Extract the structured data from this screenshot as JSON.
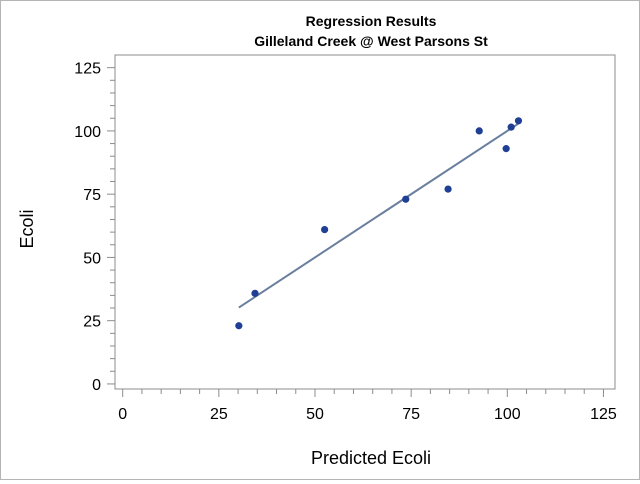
{
  "chart_data": {
    "type": "scatter",
    "title": "Regression Results",
    "subtitle": "Gilleland Creek @ West Parsons St",
    "xlabel": "Predicted Ecoli",
    "ylabel": "Ecoli",
    "xlim": [
      -2,
      128
    ],
    "ylim": [
      -2,
      130
    ],
    "xticks": [
      0,
      25,
      50,
      75,
      100,
      125
    ],
    "yticks": [
      0,
      25,
      50,
      75,
      100,
      125
    ],
    "x_minor_step": 5,
    "y_minor_step": 5,
    "grid": false,
    "points": [
      {
        "x": 30.2,
        "y": 23.0
      },
      {
        "x": 34.4,
        "y": 35.8
      },
      {
        "x": 52.5,
        "y": 61.0
      },
      {
        "x": 73.6,
        "y": 73.0
      },
      {
        "x": 84.6,
        "y": 77.0
      },
      {
        "x": 92.7,
        "y": 100.0
      },
      {
        "x": 99.7,
        "y": 93.0
      },
      {
        "x": 101.0,
        "y": 101.5
      },
      {
        "x": 102.9,
        "y": 104.0
      }
    ],
    "fit_line": {
      "x": [
        30.2,
        102.9
      ],
      "y": [
        30.2,
        102.9
      ]
    },
    "colors": {
      "points": "#1f3f95",
      "fit_line": "#6a7f9e",
      "axis": "#8c8c8c"
    }
  }
}
